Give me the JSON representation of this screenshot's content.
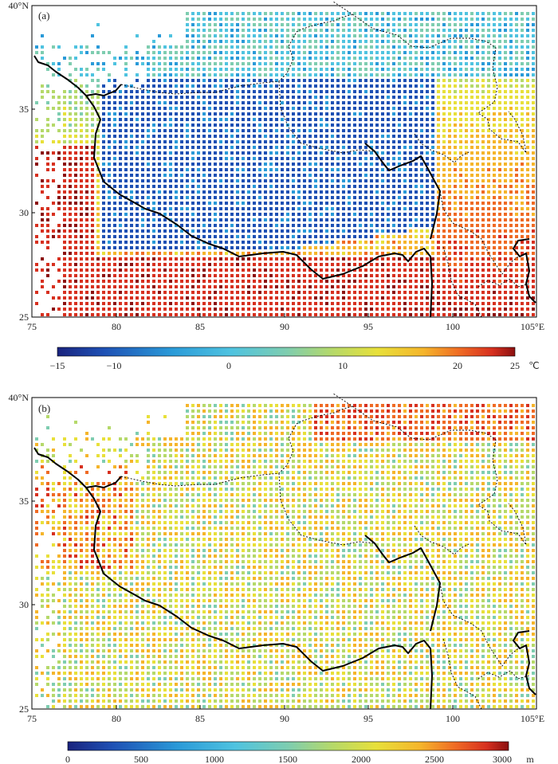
{
  "chart_data": [
    {
      "type": "heatmap",
      "panel_label": "(a)",
      "x_ticks": [
        "75",
        "80",
        "85",
        "90",
        "95",
        "100",
        "105°E"
      ],
      "y_ticks": [
        "40°N",
        "35",
        "30",
        "25"
      ],
      "xlim": [
        75,
        105
      ],
      "ylim": [
        25,
        40
      ],
      "colorbar": {
        "min": -15,
        "max": 25,
        "ticks": [
          "−15",
          "−10",
          "0",
          "10",
          "20",
          "25"
        ],
        "tick_values": [
          -15,
          -10,
          0,
          10,
          20,
          25
        ],
        "unit": "℃"
      },
      "field_description": "gridded values; low over the plateau interior (about −15 to −5), higher to the south and west (about 20 to 25)"
    },
    {
      "type": "heatmap",
      "panel_label": "(b)",
      "x_ticks": [
        "75",
        "80",
        "85",
        "90",
        "95",
        "100",
        "105°E"
      ],
      "y_ticks": [
        "40°N",
        "35",
        "30",
        "25"
      ],
      "xlim": [
        75,
        105
      ],
      "ylim": [
        25,
        40
      ],
      "colorbar": {
        "min": 0,
        "max": 3000,
        "ticks": [
          "0",
          "500",
          "1000",
          "1500",
          "2000",
          "2500",
          "3000"
        ],
        "tick_values": [
          0,
          500,
          1000,
          1500,
          2000,
          2500,
          3000
        ],
        "unit": "m"
      },
      "field_description": "gridded values mostly 1000 to 2000, higher (about 2500 to 3000) in the northeast and far west"
    }
  ],
  "colors": {
    "colormap": [
      "#1a237e",
      "#1e50b4",
      "#2a9ad8",
      "#4fc3e0",
      "#7ecdb0",
      "#b5d96a",
      "#e8e03a",
      "#f5b52b",
      "#ef6a24",
      "#d7301f",
      "#8b1010"
    ]
  }
}
